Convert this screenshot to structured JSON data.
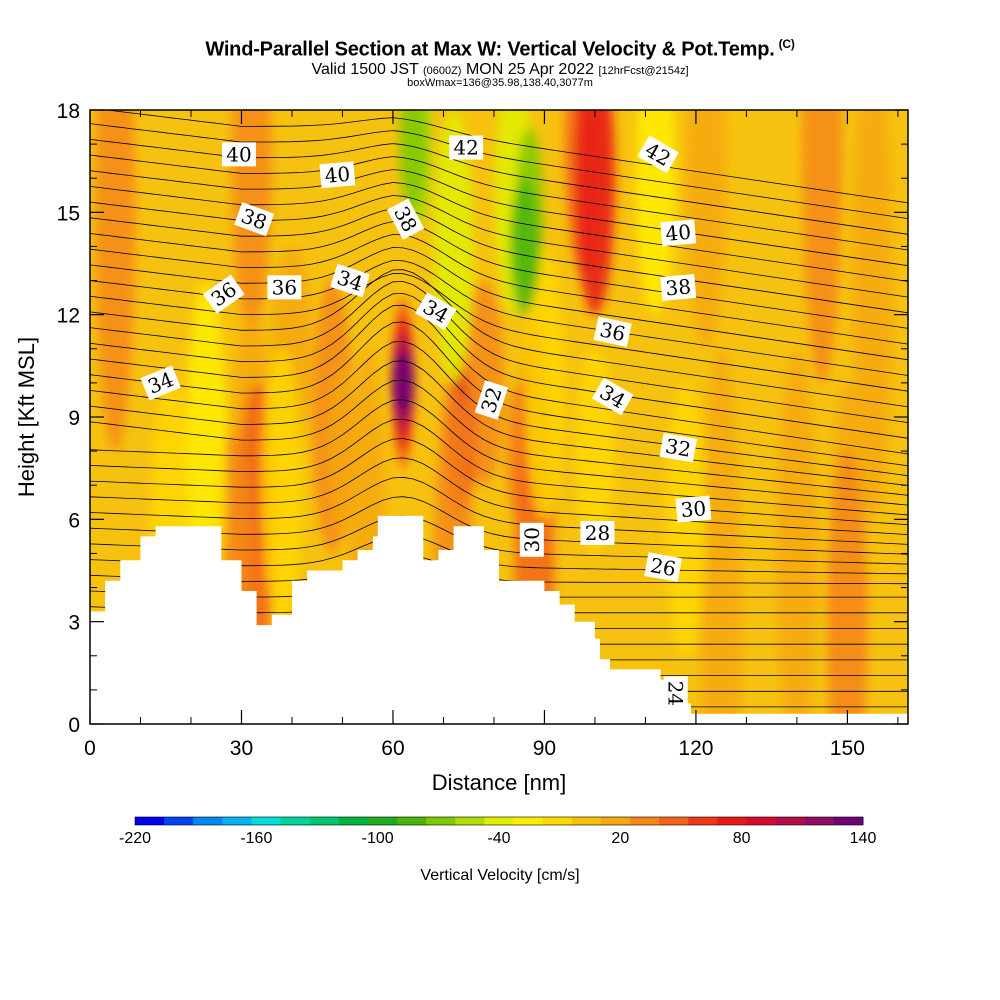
{
  "header": {
    "title": "Wind-Parallel Section at Max W: Vertical Velocity & Pot.Temp.",
    "copyright": "(C)",
    "subtitle_main1": "Valid 1500 JST",
    "subtitle_small1": "(0600Z)",
    "subtitle_main2": "MON 25 Apr 2022",
    "subtitle_small2": "[12hrFcst@2154z]",
    "note": "boxWmax=136@35.98,138.40,3077m"
  },
  "colors": {
    "background_field": "#f7c20f",
    "terrain": "#ffffff",
    "contour": "#000000"
  },
  "chart_data": {
    "type": "heatmap",
    "xlabel": "Distance [nm]",
    "ylabel": "Height [Kft MSL]",
    "xlim": [
      0,
      162
    ],
    "ylim": [
      0,
      18
    ],
    "x_ticks": [
      "0",
      "30",
      "60",
      "90",
      "120",
      "150"
    ],
    "y_ticks": [
      "0",
      "3",
      "6",
      "9",
      "12",
      "15",
      "18"
    ],
    "terrain_profile": [
      [
        0,
        3.3
      ],
      [
        3,
        3.3
      ],
      [
        3,
        4.2
      ],
      [
        6,
        4.2
      ],
      [
        6,
        4.8
      ],
      [
        10,
        4.8
      ],
      [
        10,
        5.5
      ],
      [
        13,
        5.5
      ],
      [
        13,
        5.8
      ],
      [
        26,
        5.8
      ],
      [
        26,
        4.8
      ],
      [
        30,
        4.8
      ],
      [
        30,
        3.9
      ],
      [
        33,
        3.9
      ],
      [
        33,
        2.9
      ],
      [
        36,
        2.9
      ],
      [
        36,
        3.2
      ],
      [
        40,
        3.2
      ],
      [
        40,
        4.2
      ],
      [
        43,
        4.2
      ],
      [
        43,
        4.5
      ],
      [
        50,
        4.5
      ],
      [
        50,
        4.8
      ],
      [
        53,
        4.8
      ],
      [
        53,
        5.1
      ],
      [
        56,
        5.1
      ],
      [
        56,
        5.5
      ],
      [
        57,
        5.5
      ],
      [
        57,
        6.1
      ],
      [
        66,
        6.1
      ],
      [
        66,
        4.8
      ],
      [
        69,
        4.8
      ],
      [
        69,
        5.1
      ],
      [
        72,
        5.1
      ],
      [
        72,
        5.8
      ],
      [
        78,
        5.8
      ],
      [
        78,
        5.1
      ],
      [
        81,
        5.1
      ],
      [
        81,
        4.2
      ],
      [
        90,
        4.2
      ],
      [
        90,
        3.9
      ],
      [
        93,
        3.9
      ],
      [
        93,
        3.5
      ],
      [
        96,
        3.5
      ],
      [
        96,
        3.0
      ],
      [
        100,
        3.0
      ],
      [
        100,
        2.5
      ],
      [
        101,
        2.5
      ],
      [
        101,
        1.9
      ],
      [
        103,
        1.9
      ],
      [
        103,
        1.6
      ],
      [
        113,
        1.6
      ],
      [
        113,
        1.3
      ],
      [
        116,
        1.3
      ],
      [
        116,
        0.9
      ],
      [
        118,
        0.9
      ],
      [
        118,
        0.6
      ],
      [
        119,
        0.6
      ],
      [
        119,
        0.3
      ],
      [
        162,
        0.3
      ]
    ],
    "theta_contour_labels": [
      {
        "text": "40",
        "x": 29.5,
        "y": 16.7,
        "rot": 0
      },
      {
        "text": "40",
        "x": 49,
        "y": 16.1,
        "rot": -5
      },
      {
        "text": "42",
        "x": 74.5,
        "y": 16.9,
        "rot": 0
      },
      {
        "text": "42",
        "x": 112.5,
        "y": 16.7,
        "rot": 30
      },
      {
        "text": "38",
        "x": 32.5,
        "y": 14.8,
        "rot": 20
      },
      {
        "text": "38",
        "x": 62.5,
        "y": 14.8,
        "rot": 62
      },
      {
        "text": "40",
        "x": 116.5,
        "y": 14.4,
        "rot": -5
      },
      {
        "text": "36",
        "x": 26.5,
        "y": 12.6,
        "rot": -35
      },
      {
        "text": "36",
        "x": 38.5,
        "y": 12.8,
        "rot": 0
      },
      {
        "text": "34",
        "x": 51.5,
        "y": 13.0,
        "rot": 18
      },
      {
        "text": "34",
        "x": 68.5,
        "y": 12.1,
        "rot": 30
      },
      {
        "text": "38",
        "x": 116.5,
        "y": 12.8,
        "rot": -5
      },
      {
        "text": "36",
        "x": 103.5,
        "y": 11.5,
        "rot": 12
      },
      {
        "text": "34",
        "x": 14,
        "y": 10.0,
        "rot": -22
      },
      {
        "text": "32",
        "x": 79.5,
        "y": 9.5,
        "rot": -72
      },
      {
        "text": "34",
        "x": 103.5,
        "y": 9.6,
        "rot": 30
      },
      {
        "text": "32",
        "x": 116.5,
        "y": 8.1,
        "rot": 10
      },
      {
        "text": "30",
        "x": 119.5,
        "y": 6.3,
        "rot": -5
      },
      {
        "text": "30",
        "x": 87.5,
        "y": 5.4,
        "rot": -90
      },
      {
        "text": "28",
        "x": 100.5,
        "y": 5.6,
        "rot": 0
      },
      {
        "text": "26",
        "x": 113.5,
        "y": 4.6,
        "rot": 10
      },
      {
        "text": "24",
        "x": 116,
        "y": 0.9,
        "rot": 90
      }
    ],
    "colorbar": {
      "title": "Vertical Velocity [cm/s]",
      "tick_labels": [
        "-220",
        "-160",
        "-100",
        "-40",
        "20",
        "80",
        "140"
      ],
      "levels": [
        -220,
        140
      ],
      "colors": [
        "#0000ee",
        "#0044f0",
        "#0088f2",
        "#00b4f2",
        "#00dcd8",
        "#00d49c",
        "#00c870",
        "#00b440",
        "#22aa20",
        "#4cb40c",
        "#80c800",
        "#b0dc00",
        "#e0ee00",
        "#ffee00",
        "#ffd800",
        "#f8c000",
        "#f6a810",
        "#f68818",
        "#f46418",
        "#ee3818",
        "#e81818",
        "#d40c2c",
        "#b40c48",
        "#900c60",
        "#6c0478"
      ]
    }
  }
}
